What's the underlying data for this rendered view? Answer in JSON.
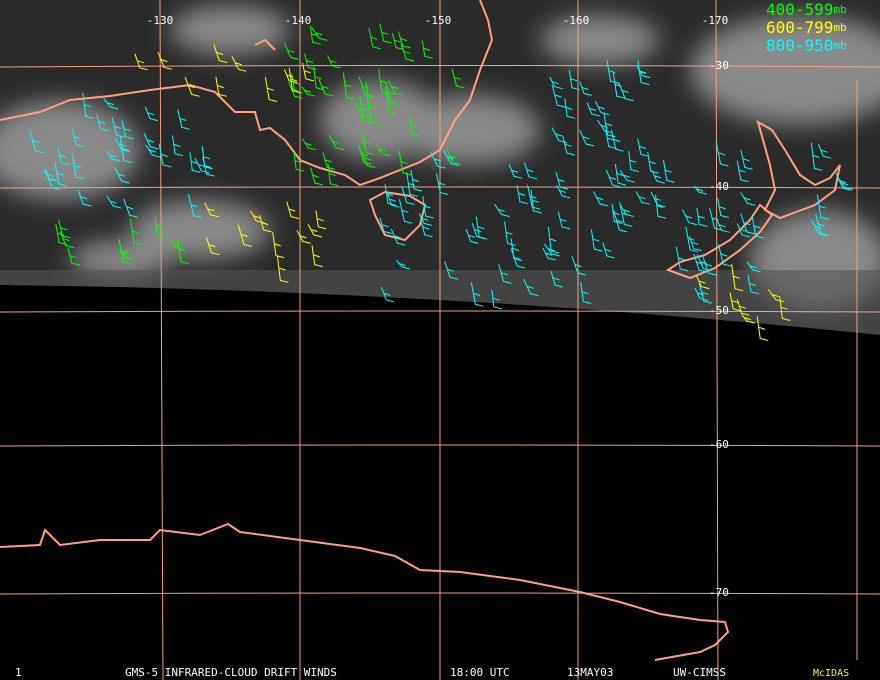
{
  "longitude_labels": [
    "-130",
    "-140",
    "-150",
    "-160",
    "-170"
  ],
  "latitude_labels": [
    "-30",
    "-40",
    "-50",
    "-60",
    "-70"
  ],
  "legend": [
    {
      "label": "400-599",
      "unit": "mb",
      "color": "#00ff00"
    },
    {
      "label": "600-799",
      "unit": "mb",
      "color": "#ffff00"
    },
    {
      "label": "800-950",
      "unit": "mb",
      "color": "#00ffff"
    }
  ],
  "footer": {
    "frame": "1",
    "title": "GMS-5 INFRARED-CLOUD DRIFT WINDS",
    "time": "18:00 UTC",
    "date": "13MAY03",
    "source": "UW-CIMSS",
    "software": "McIDAS"
  }
}
